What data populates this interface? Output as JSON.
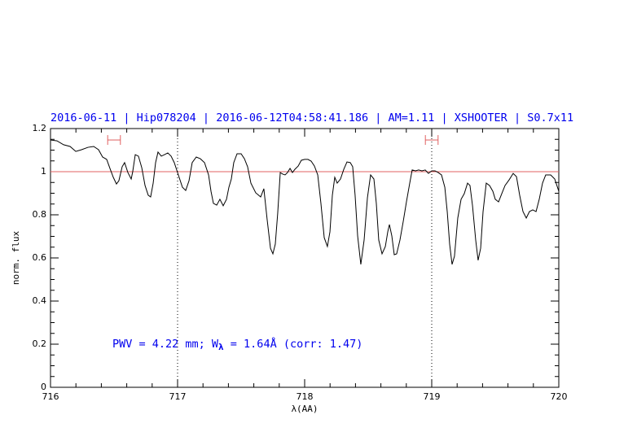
{
  "chart_data": {
    "type": "line",
    "title": "2016-06-11 | Hip078204 | 2016-06-12T04:58:41.186 | AM=1.11 | XSHOOTER | S0.7x11",
    "x_label": "λ(AA)",
    "y_label": "norm. flux",
    "annotation": [
      "PWV = 4.22 mm; W",
      "λ",
      " = 1.64Å (corr: 1.47)"
    ],
    "xlim": [
      716,
      720
    ],
    "xticks": [
      716,
      717,
      718,
      719,
      720
    ],
    "ylim": [
      0,
      1.2
    ],
    "yticks": [
      0,
      0.2,
      0.4,
      0.6,
      0.8,
      1,
      1.2
    ],
    "hline": {
      "value": 1,
      "color": "#e06060"
    },
    "vlines": [
      717,
      719
    ],
    "markers": [
      {
        "x": [
          716.45,
          716.55
        ],
        "y": 1.147,
        "color": "#e06060"
      },
      {
        "x": [
          718.95,
          719.05
        ],
        "y": 1.147,
        "color": "#e06060"
      }
    ],
    "series": [
      {
        "color": "#000000",
        "x": [
          716.0,
          716.051,
          716.103,
          716.154,
          716.199,
          716.244,
          716.295,
          716.34,
          716.378,
          716.41,
          716.442,
          716.468,
          716.494,
          716.519,
          716.538,
          716.564,
          716.583,
          716.609,
          716.635,
          716.647,
          716.667,
          716.692,
          716.718,
          716.744,
          716.769,
          716.788,
          716.808,
          716.827,
          716.846,
          716.872,
          716.897,
          716.923,
          716.949,
          716.974,
          717.006,
          717.038,
          717.064,
          717.09,
          717.115,
          717.147,
          717.179,
          717.212,
          717.244,
          717.263,
          717.282,
          717.308,
          717.333,
          717.359,
          717.385,
          717.404,
          717.423,
          717.442,
          717.468,
          717.5,
          717.526,
          717.551,
          717.577,
          717.615,
          717.654,
          717.679,
          717.705,
          717.731,
          717.75,
          717.769,
          717.788,
          717.808,
          717.827,
          717.846,
          717.865,
          717.885,
          717.904,
          717.923,
          717.949,
          717.974,
          718.0,
          718.026,
          718.051,
          718.077,
          718.103,
          718.128,
          718.154,
          718.179,
          718.199,
          718.218,
          718.237,
          718.256,
          718.282,
          718.308,
          718.333,
          718.359,
          718.378,
          718.397,
          718.417,
          718.442,
          718.468,
          718.494,
          718.519,
          718.545,
          718.564,
          718.583,
          718.609,
          718.635,
          718.654,
          718.667,
          718.686,
          718.705,
          718.724,
          718.75,
          718.776,
          718.801,
          718.827,
          718.846,
          718.872,
          718.897,
          718.923,
          718.949,
          718.974,
          719.0,
          719.026,
          719.051,
          719.077,
          719.103,
          719.122,
          719.141,
          719.16,
          719.179,
          719.205,
          719.231,
          719.256,
          719.282,
          719.301,
          719.321,
          719.346,
          719.365,
          719.385,
          719.404,
          719.429,
          719.455,
          719.481,
          719.5,
          719.526,
          719.551,
          719.577,
          719.609,
          719.641,
          719.667,
          719.692,
          719.718,
          719.744,
          719.769,
          719.795,
          719.821,
          719.846,
          719.872,
          719.897,
          719.936,
          719.968,
          720.0
        ],
        "values": [
          1.147,
          1.143,
          1.125,
          1.117,
          1.094,
          1.102,
          1.113,
          1.117,
          1.102,
          1.068,
          1.057,
          1.015,
          0.974,
          0.943,
          0.958,
          1.023,
          1.042,
          0.996,
          0.966,
          1.0,
          1.079,
          1.072,
          1.019,
          0.936,
          0.891,
          0.883,
          0.947,
          1.042,
          1.091,
          1.072,
          1.079,
          1.087,
          1.072,
          1.042,
          0.985,
          0.928,
          0.913,
          0.958,
          1.042,
          1.068,
          1.06,
          1.042,
          0.985,
          0.909,
          0.853,
          0.845,
          0.872,
          0.842,
          0.872,
          0.928,
          0.966,
          1.042,
          1.083,
          1.083,
          1.06,
          1.023,
          0.947,
          0.902,
          0.883,
          0.921,
          0.777,
          0.645,
          0.619,
          0.664,
          0.808,
          0.996,
          0.989,
          0.985,
          0.996,
          1.015,
          0.996,
          1.011,
          1.026,
          1.053,
          1.057,
          1.057,
          1.049,
          1.026,
          0.985,
          0.853,
          0.694,
          0.653,
          0.721,
          0.891,
          0.974,
          0.947,
          0.966,
          1.011,
          1.045,
          1.042,
          1.023,
          0.891,
          0.702,
          0.57,
          0.683,
          0.879,
          0.985,
          0.966,
          0.853,
          0.683,
          0.619,
          0.653,
          0.721,
          0.755,
          0.702,
          0.615,
          0.619,
          0.683,
          0.77,
          0.86,
          0.947,
          1.008,
          1.004,
          1.008,
          1.004,
          1.008,
          0.992,
          1.004,
          1.004,
          0.996,
          0.985,
          0.928,
          0.815,
          0.664,
          0.57,
          0.608,
          0.785,
          0.872,
          0.898,
          0.947,
          0.936,
          0.842,
          0.683,
          0.589,
          0.645,
          0.815,
          0.947,
          0.936,
          0.909,
          0.872,
          0.86,
          0.898,
          0.936,
          0.962,
          0.992,
          0.977,
          0.891,
          0.815,
          0.785,
          0.815,
          0.823,
          0.815,
          0.872,
          0.947,
          0.985,
          0.985,
          0.966,
          0.909
        ]
      }
    ]
  }
}
